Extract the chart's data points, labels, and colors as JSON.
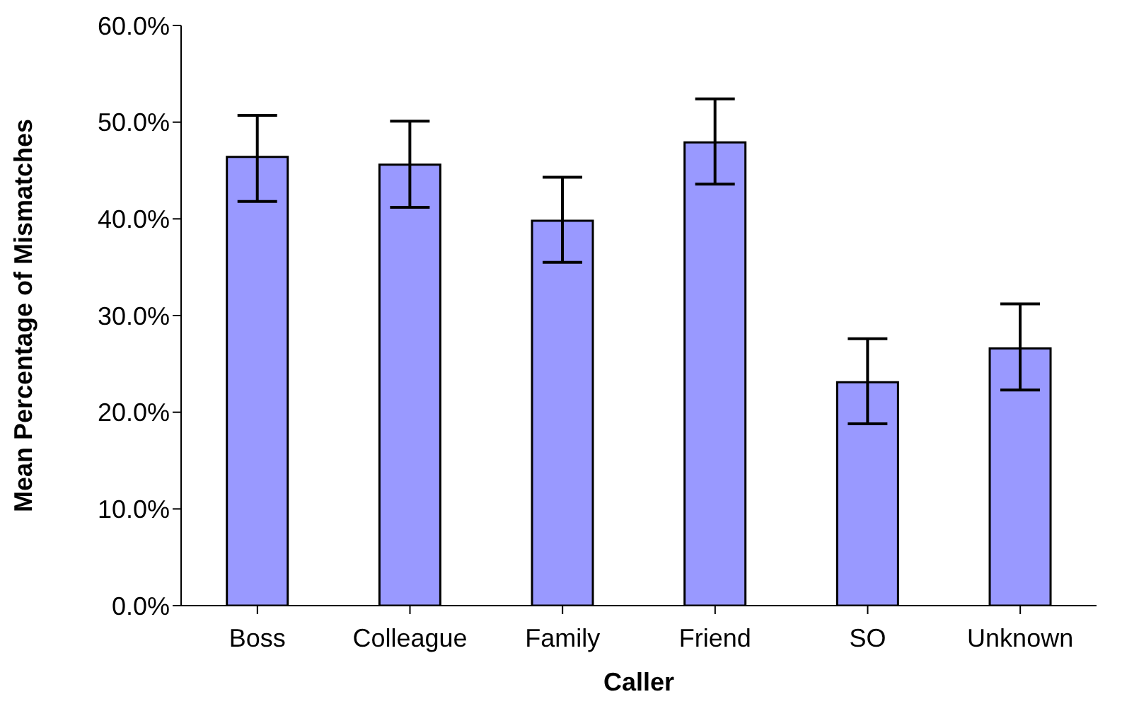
{
  "chart_data": {
    "type": "bar",
    "xlabel": "Caller",
    "ylabel": "Mean Percentage of Mismatches",
    "categories": [
      "Boss",
      "Colleague",
      "Family",
      "Friend",
      "SO",
      "Unknown"
    ],
    "values": [
      46.4,
      45.6,
      39.8,
      47.9,
      23.1,
      26.6
    ],
    "errors": [
      [
        41.8,
        50.7
      ],
      [
        41.2,
        50.1
      ],
      [
        35.5,
        44.3
      ],
      [
        43.6,
        52.4
      ],
      [
        18.8,
        27.6
      ],
      [
        22.3,
        31.2
      ]
    ],
    "color": "#9999ff",
    "ylim": [
      0,
      60
    ],
    "yticks": [
      {
        "value": 0,
        "label": "0.0%"
      },
      {
        "value": 10,
        "label": "10.0%"
      },
      {
        "value": 20,
        "label": "20.0%"
      },
      {
        "value": 30,
        "label": "30.0%"
      },
      {
        "value": 40,
        "label": "40.0%"
      },
      {
        "value": 50,
        "label": "50.0%"
      },
      {
        "value": 60,
        "label": "60.0%"
      }
    ],
    "grid": false,
    "legend": false
  }
}
